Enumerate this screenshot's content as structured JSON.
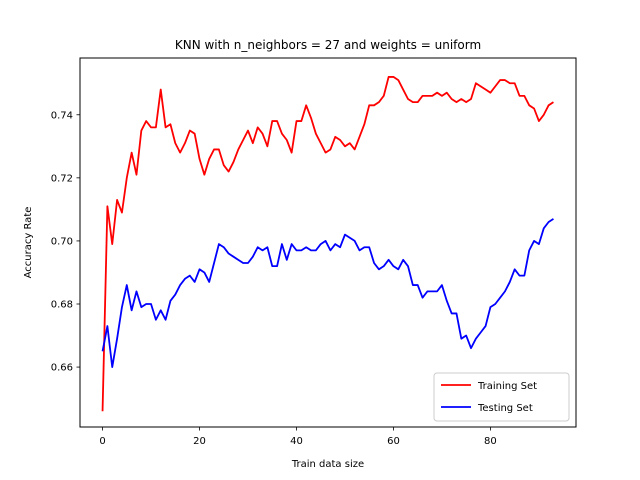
{
  "chart_data": {
    "type": "line",
    "title": "KNN with n_neighbors = 27 and weights = uniform",
    "xlabel": "Train data size",
    "ylabel": "Accuracy Rate",
    "xlim": [
      -4.65,
      97.65
    ],
    "ylim": [
      0.641,
      0.758
    ],
    "xticks": [
      0,
      20,
      40,
      60,
      80
    ],
    "xtick_labels": [
      "0",
      "20",
      "40",
      "60",
      "80"
    ],
    "yticks": [
      0.66,
      0.68,
      0.7,
      0.72,
      0.74
    ],
    "ytick_labels": [
      "0.66",
      "0.68",
      "0.70",
      "0.72",
      "0.74"
    ],
    "grid": false,
    "legend_position": "lower right",
    "x": [
      0,
      1,
      2,
      3,
      4,
      5,
      6,
      7,
      8,
      9,
      10,
      11,
      12,
      13,
      14,
      15,
      16,
      17,
      18,
      19,
      20,
      21,
      22,
      23,
      24,
      25,
      26,
      27,
      28,
      29,
      30,
      31,
      32,
      33,
      34,
      35,
      36,
      37,
      38,
      39,
      40,
      41,
      42,
      43,
      44,
      45,
      46,
      47,
      48,
      49,
      50,
      51,
      52,
      53,
      54,
      55,
      56,
      57,
      58,
      59,
      60,
      61,
      62,
      63,
      64,
      65,
      66,
      67,
      68,
      69,
      70,
      71,
      72,
      73,
      74,
      75,
      76,
      77,
      78,
      79,
      80,
      81,
      82,
      83,
      84,
      85,
      86,
      87,
      88,
      89,
      90,
      91,
      92,
      93
    ],
    "series": [
      {
        "name": "Training Set",
        "color": "#ff0000",
        "values": [
          0.646,
          0.711,
          0.699,
          0.713,
          0.709,
          0.72,
          0.728,
          0.721,
          0.735,
          0.738,
          0.736,
          0.736,
          0.748,
          0.736,
          0.737,
          0.731,
          0.728,
          0.731,
          0.735,
          0.734,
          0.726,
          0.721,
          0.726,
          0.729,
          0.729,
          0.724,
          0.722,
          0.725,
          0.729,
          0.732,
          0.735,
          0.731,
          0.736,
          0.734,
          0.73,
          0.738,
          0.738,
          0.734,
          0.732,
          0.728,
          0.738,
          0.738,
          0.743,
          0.739,
          0.734,
          0.731,
          0.728,
          0.729,
          0.733,
          0.732,
          0.73,
          0.731,
          0.729,
          0.733,
          0.737,
          0.743,
          0.743,
          0.744,
          0.746,
          0.752,
          0.752,
          0.751,
          0.748,
          0.745,
          0.744,
          0.744,
          0.746,
          0.746,
          0.746,
          0.747,
          0.746,
          0.747,
          0.745,
          0.744,
          0.745,
          0.744,
          0.745,
          0.75,
          0.749,
          0.748,
          0.747,
          0.749,
          0.751,
          0.751,
          0.75,
          0.75,
          0.746,
          0.746,
          0.743,
          0.742,
          0.738,
          0.74,
          0.743,
          0.744
        ]
      },
      {
        "name": "Testing Set",
        "color": "#0000ff",
        "values": [
          0.665,
          0.673,
          0.66,
          0.669,
          0.679,
          0.686,
          0.678,
          0.684,
          0.679,
          0.68,
          0.68,
          0.675,
          0.678,
          0.675,
          0.681,
          0.683,
          0.686,
          0.688,
          0.689,
          0.687,
          0.691,
          0.69,
          0.687,
          0.693,
          0.699,
          0.698,
          0.696,
          0.695,
          0.694,
          0.693,
          0.693,
          0.695,
          0.698,
          0.697,
          0.698,
          0.692,
          0.692,
          0.699,
          0.694,
          0.699,
          0.697,
          0.697,
          0.698,
          0.697,
          0.697,
          0.699,
          0.7,
          0.697,
          0.699,
          0.698,
          0.702,
          0.701,
          0.7,
          0.697,
          0.698,
          0.698,
          0.693,
          0.691,
          0.692,
          0.694,
          0.692,
          0.691,
          0.694,
          0.692,
          0.686,
          0.686,
          0.682,
          0.684,
          0.684,
          0.684,
          0.686,
          0.681,
          0.677,
          0.677,
          0.669,
          0.67,
          0.666,
          0.669,
          0.671,
          0.673,
          0.679,
          0.68,
          0.682,
          0.684,
          0.687,
          0.691,
          0.689,
          0.689,
          0.697,
          0.7,
          0.699,
          0.704,
          0.706,
          0.707
        ]
      }
    ]
  }
}
